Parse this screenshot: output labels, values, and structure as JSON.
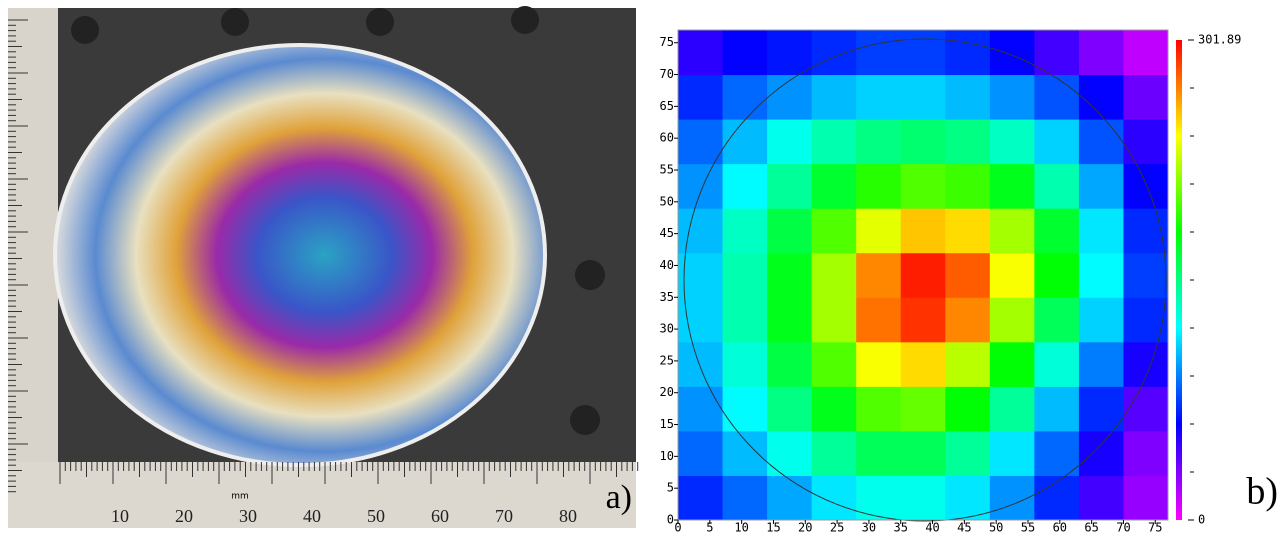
{
  "photo": {
    "ruler_labels": [
      "10",
      "20",
      "30",
      "40",
      "50",
      "60",
      "70",
      "80"
    ],
    "ruler_unit": "mm",
    "panel_label": "a)"
  },
  "chart_data": {
    "type": "heatmap",
    "panel_label": "b)",
    "x": [
      3.5,
      10.5,
      17.5,
      24.5,
      31.5,
      38.5,
      45.5,
      52.5,
      59.5,
      66.5,
      73.5
    ],
    "y": [
      3.5,
      10.5,
      17.5,
      24.5,
      31.5,
      38.5,
      45.5,
      52.5,
      59.5,
      66.5,
      73.5
    ],
    "z": [
      [
        70,
        85,
        100,
        115,
        125,
        125,
        115,
        95,
        70,
        45,
        25
      ],
      [
        85,
        105,
        125,
        145,
        160,
        160,
        145,
        115,
        85,
        55,
        30
      ],
      [
        95,
        120,
        150,
        175,
        200,
        205,
        180,
        145,
        105,
        70,
        40
      ],
      [
        105,
        130,
        165,
        200,
        240,
        250,
        225,
        180,
        130,
        90,
        55
      ],
      [
        110,
        140,
        175,
        220,
        275,
        290,
        270,
        220,
        160,
        110,
        70
      ],
      [
        110,
        140,
        175,
        220,
        270,
        295,
        280,
        240,
        180,
        120,
        75
      ],
      [
        105,
        135,
        165,
        200,
        235,
        255,
        250,
        220,
        170,
        115,
        70
      ],
      [
        95,
        120,
        145,
        170,
        190,
        200,
        195,
        175,
        140,
        100,
        60
      ],
      [
        85,
        105,
        125,
        140,
        150,
        155,
        150,
        135,
        110,
        80,
        50
      ],
      [
        70,
        85,
        95,
        105,
        110,
        110,
        105,
        95,
        80,
        60,
        35
      ],
      [
        50,
        60,
        65,
        70,
        75,
        75,
        70,
        60,
        45,
        30,
        15
      ]
    ],
    "xlim": [
      0,
      77
    ],
    "ylim": [
      0,
      77
    ],
    "xticks": [
      0,
      5,
      10,
      15,
      20,
      25,
      30,
      35,
      40,
      45,
      50,
      55,
      60,
      65,
      70,
      75
    ],
    "yticks": [
      0,
      5,
      10,
      15,
      20,
      25,
      30,
      35,
      40,
      45,
      50,
      55,
      60,
      65,
      70,
      75
    ],
    "zlim": [
      0,
      301.89
    ],
    "zticks": [
      0,
      301.89
    ],
    "colorscale": [
      "#ff00ff",
      "#0000ff",
      "#00ffff",
      "#00ff00",
      "#ffff00",
      "#ff0000"
    ]
  }
}
